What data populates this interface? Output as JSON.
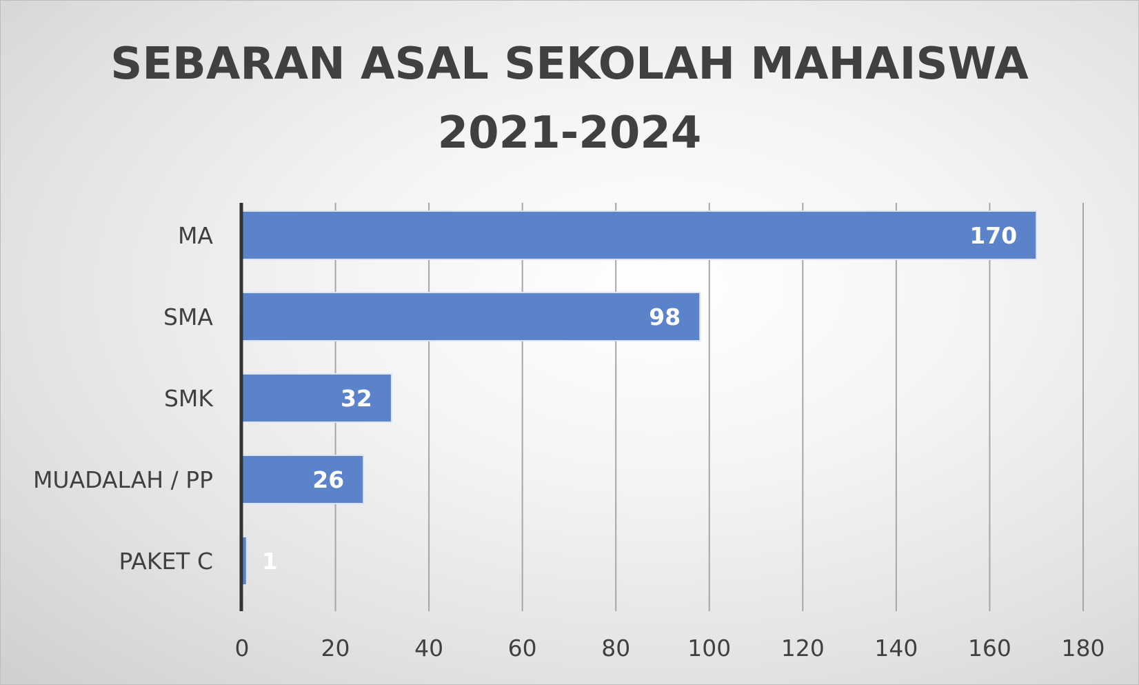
{
  "chart_data": {
    "type": "bar",
    "orientation": "horizontal",
    "title": "SEBARAN ASAL SEKOLAH MAHAISWA 2021-2024",
    "title_lines": [
      "SEBARAN ASAL SEKOLAH MAHAISWA",
      "2021-2024"
    ],
    "categories": [
      "MA",
      "SMA",
      "SMK",
      "MUADALAH / PP",
      "PAKET C"
    ],
    "values": [
      170,
      98,
      32,
      26,
      1
    ],
    "data_labels": [
      "170",
      "98",
      "32",
      "26",
      "1"
    ],
    "xlim": [
      0,
      180
    ],
    "x_ticks": [
      0,
      20,
      40,
      60,
      80,
      100,
      120,
      140,
      160,
      180
    ],
    "x_tick_labels": [
      "0",
      "20",
      "40",
      "60",
      "80",
      "100",
      "120",
      "140",
      "160",
      "180"
    ],
    "grid": true,
    "legend": "none",
    "bar_color": "#5b83c9",
    "bar_edge_color": "#dbe4f3",
    "gridline_color": "#a6a6a6",
    "axis_color": "#333333",
    "text_color": "#404040",
    "data_label_color": "#ffffff"
  }
}
